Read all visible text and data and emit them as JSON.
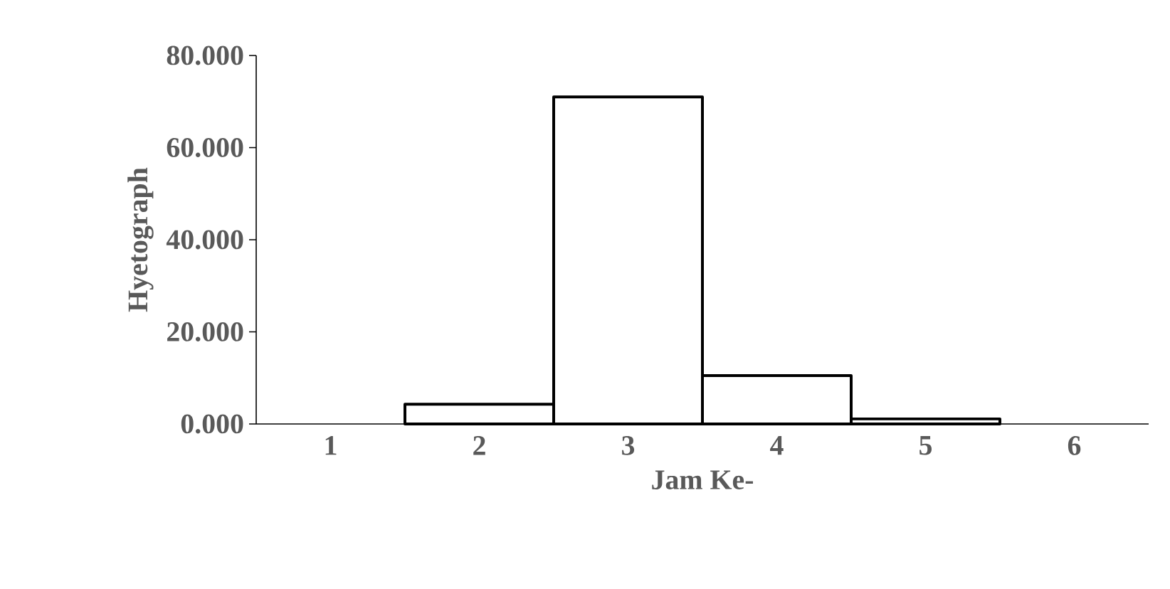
{
  "chart_data": {
    "type": "bar",
    "xlabel": "Jam Ke-",
    "ylabel": "Hyetograph",
    "categories": [
      "1",
      "2",
      "3",
      "4",
      "5",
      "6"
    ],
    "values": [
      null,
      4.3,
      71.0,
      10.5,
      1.1,
      null
    ],
    "color": "#ffffff",
    "ylim": [
      0,
      80
    ],
    "yticks": [
      {
        "value": 0,
        "label": "0.000"
      },
      {
        "value": 20,
        "label": "20.000"
      },
      {
        "value": 40,
        "label": "40.000"
      },
      {
        "value": 60,
        "label": "60.000"
      },
      {
        "value": 80,
        "label": "80.000"
      }
    ],
    "grid": false
  }
}
